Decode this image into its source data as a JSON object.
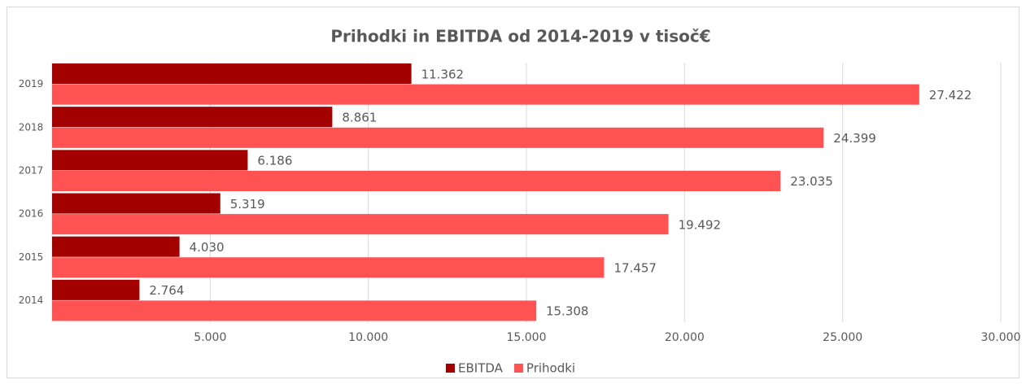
{
  "chart_data": {
    "type": "hbar",
    "title": "Prihodki in EBITDA od 2014-2019  v tisoč€",
    "categories": [
      "2014",
      "2015",
      "2016",
      "2017",
      "2018",
      "2019"
    ],
    "series": [
      {
        "name": "EBITDA",
        "color": "#a30000",
        "values": [
          2764,
          4030,
          5319,
          6186,
          8861,
          11362
        ],
        "value_labels": [
          "2.764",
          "4.030",
          "5.319",
          "6.186",
          "8.861",
          "11.362"
        ]
      },
      {
        "name": "Prihodki",
        "color": "#ff5252",
        "values": [
          15308,
          17457,
          19492,
          23035,
          24399,
          27422
        ],
        "value_labels": [
          "15.308",
          "17.457",
          "19.492",
          "23.035",
          "24.399",
          "27.422"
        ]
      }
    ],
    "xlim": [
      0,
      30000
    ],
    "xticks": [
      {
        "value": 5000,
        "label": "5.000"
      },
      {
        "value": 10000,
        "label": "10.000"
      },
      {
        "value": 15000,
        "label": "15.000"
      },
      {
        "value": 20000,
        "label": "20.000"
      },
      {
        "value": 25000,
        "label": "25.000"
      },
      {
        "value": 30000,
        "label": "30.000"
      }
    ],
    "grid": true
  }
}
